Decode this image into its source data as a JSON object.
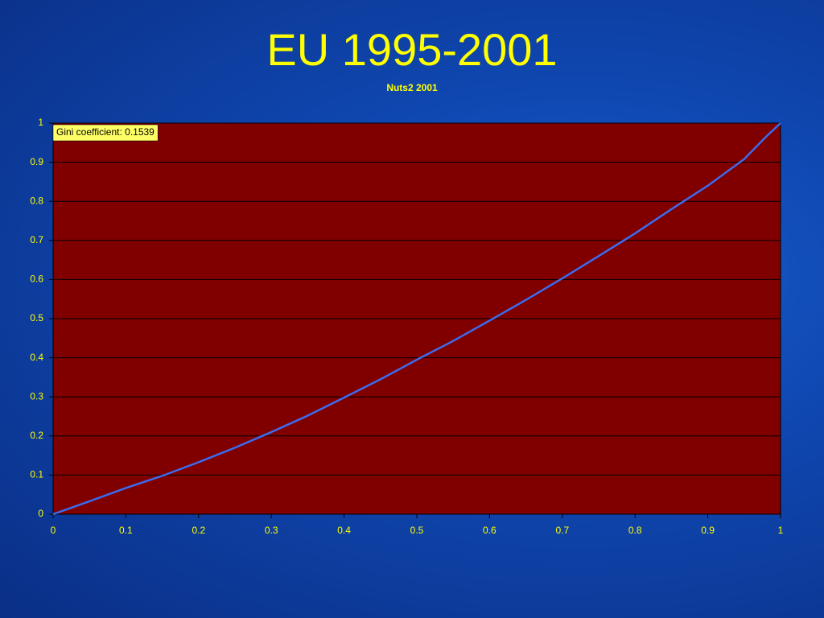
{
  "chart_data": {
    "type": "line",
    "title": "EU 1995-2001",
    "subtitle": "Nuts2 2001",
    "annotation": "Gini coefficient: 0.1539",
    "x": [
      0,
      0.05,
      0.1,
      0.15,
      0.2,
      0.25,
      0.3,
      0.35,
      0.4,
      0.45,
      0.5,
      0.55,
      0.6,
      0.65,
      0.7,
      0.75,
      0.8,
      0.85,
      0.9,
      0.95,
      0.98,
      1
    ],
    "series": [
      {
        "color": "#3a6cf0",
        "values": [
          0,
          0.033,
          0.067,
          0.098,
          0.133,
          0.17,
          0.21,
          0.252,
          0.298,
          0.345,
          0.395,
          0.443,
          0.495,
          0.548,
          0.603,
          0.66,
          0.718,
          0.78,
          0.84,
          0.908,
          0.965,
          1
        ]
      }
    ],
    "xlim": [
      0,
      1
    ],
    "ylim": [
      0,
      1
    ],
    "xticks": [
      0,
      0.1,
      0.2,
      0.3,
      0.4,
      0.5,
      0.6,
      0.7,
      0.8,
      0.9,
      1
    ],
    "yticks": [
      0,
      0.1,
      0.2,
      0.3,
      0.4,
      0.5,
      0.6,
      0.7,
      0.8,
      0.9,
      1
    ],
    "grid": true,
    "plot_background": "#800000"
  }
}
